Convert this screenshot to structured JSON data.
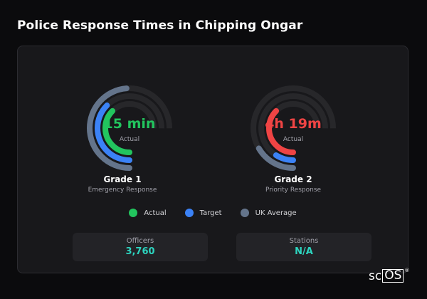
{
  "page": {
    "title": "Police Response Times in Chipping Ongar"
  },
  "gauges": [
    {
      "value_text": "15 min",
      "sub_label": "Actual",
      "title": "Grade 1",
      "subtitle": "Emergency Response",
      "value_color": "#22c55e",
      "rings": {
        "actual": 0.5,
        "target": 0.5,
        "uk_average": 0.65
      }
    },
    {
      "value_text": "4h 19m",
      "sub_label": "Actual",
      "title": "Grade 2",
      "subtitle": "Priority Response",
      "value_color": "#ef4444",
      "rings": {
        "actual": 0.5,
        "target": 0.12,
        "uk_average": 0.22
      }
    }
  ],
  "legend": [
    {
      "label": "Actual",
      "color": "#22c55e"
    },
    {
      "label": "Target",
      "color": "#3b82f6"
    },
    {
      "label": "UK Average",
      "color": "#64748b"
    }
  ],
  "stats": [
    {
      "label": "Officers",
      "value": "3,760"
    },
    {
      "label": "Stations",
      "value": "N/A"
    }
  ],
  "colors": {
    "actual": "#22c55e",
    "actual_over": "#ef4444",
    "target": "#3b82f6",
    "uk_average": "#64748b",
    "track": "#27272a",
    "stat_value": "#2dd4bf"
  },
  "logo": {
    "prefix": "sc",
    "boxed": "OS",
    "mark": "®"
  }
}
